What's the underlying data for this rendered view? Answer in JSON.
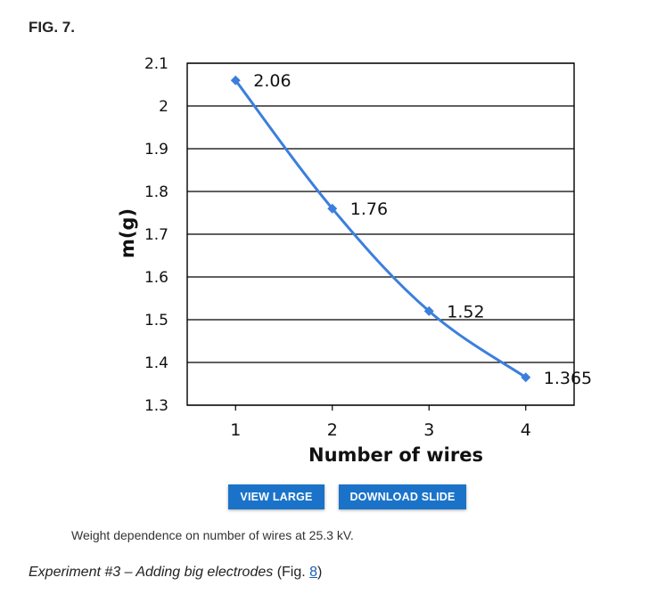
{
  "figure": {
    "label": "FIG. 7."
  },
  "chart_data": {
    "type": "line",
    "x": [
      1,
      2,
      3,
      4
    ],
    "categories": [
      "1",
      "2",
      "3",
      "4"
    ],
    "series": [
      {
        "values": [
          2.06,
          1.76,
          1.52,
          1.365
        ],
        "labels": [
          "2.06",
          "1.76",
          "1.52",
          "1.365"
        ],
        "color": "#3b7fdd",
        "marker": "diamond"
      }
    ],
    "xlabel": "Number of wires",
    "ylabel": "m(g)",
    "ylim": [
      1.3,
      2.1
    ],
    "yticks": [
      1.3,
      1.4,
      1.5,
      1.6,
      1.7,
      1.8,
      1.9,
      2.0,
      2.1
    ],
    "ytick_labels": [
      "1.3",
      "1.4",
      "1.5",
      "1.6",
      "1.7",
      "1.8",
      "1.9",
      "2",
      "2.1"
    ],
    "grid": true,
    "legend": "none"
  },
  "buttons": {
    "view_large": "VIEW LARGE",
    "download_slide": "DOWNLOAD SLIDE"
  },
  "caption": "Weight dependence on number of wires at 25.3 kV.",
  "paragraph": {
    "italic_text": "Experiment #3 – Adding big electrodes",
    "prefix": " (Fig. ",
    "link": "8",
    "suffix": ")"
  },
  "colors": {
    "button_bg": "#1a73c9",
    "link": "#1a5fb4",
    "line": "#3b7fdd"
  }
}
